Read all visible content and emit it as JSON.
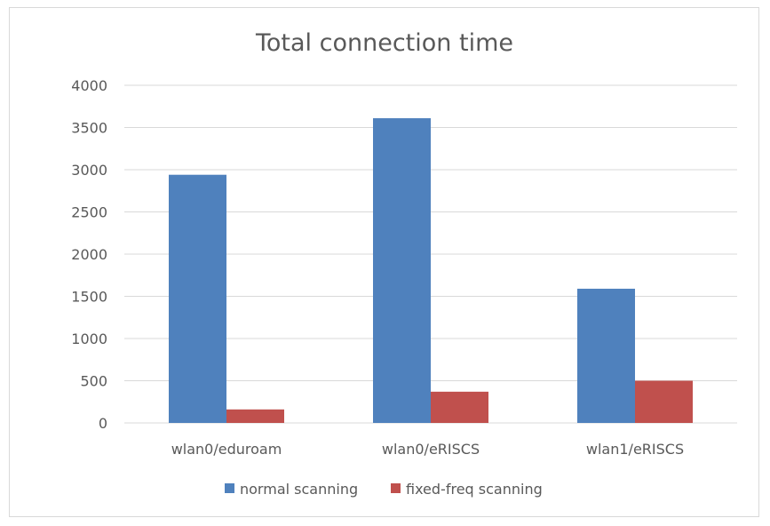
{
  "chart_data": {
    "type": "bar",
    "title": "Total connection time",
    "xlabel": "",
    "ylabel": "",
    "categories": [
      "wlan0/eduroam",
      "wlan0/eRISCS",
      "wlan1/eRISCS"
    ],
    "series": [
      {
        "name": "normal scanning",
        "values": [
          2940,
          3610,
          1590
        ],
        "color": "#4f81bd"
      },
      {
        "name": "fixed-freq scanning",
        "values": [
          160,
          370,
          500
        ],
        "color": "#c0504d"
      }
    ],
    "ylim": [
      0,
      4000
    ],
    "yticks": [
      0,
      500,
      1000,
      1500,
      2000,
      2500,
      3000,
      3500,
      4000
    ],
    "ytick_labels": [
      "0",
      "500",
      "1000",
      "1500",
      "2000",
      "2500",
      "3000",
      "3500",
      "4000"
    ],
    "grid": true,
    "legend_position": "bottom",
    "colors": {
      "gridline": "#d9d9d9",
      "text": "#595959"
    }
  }
}
